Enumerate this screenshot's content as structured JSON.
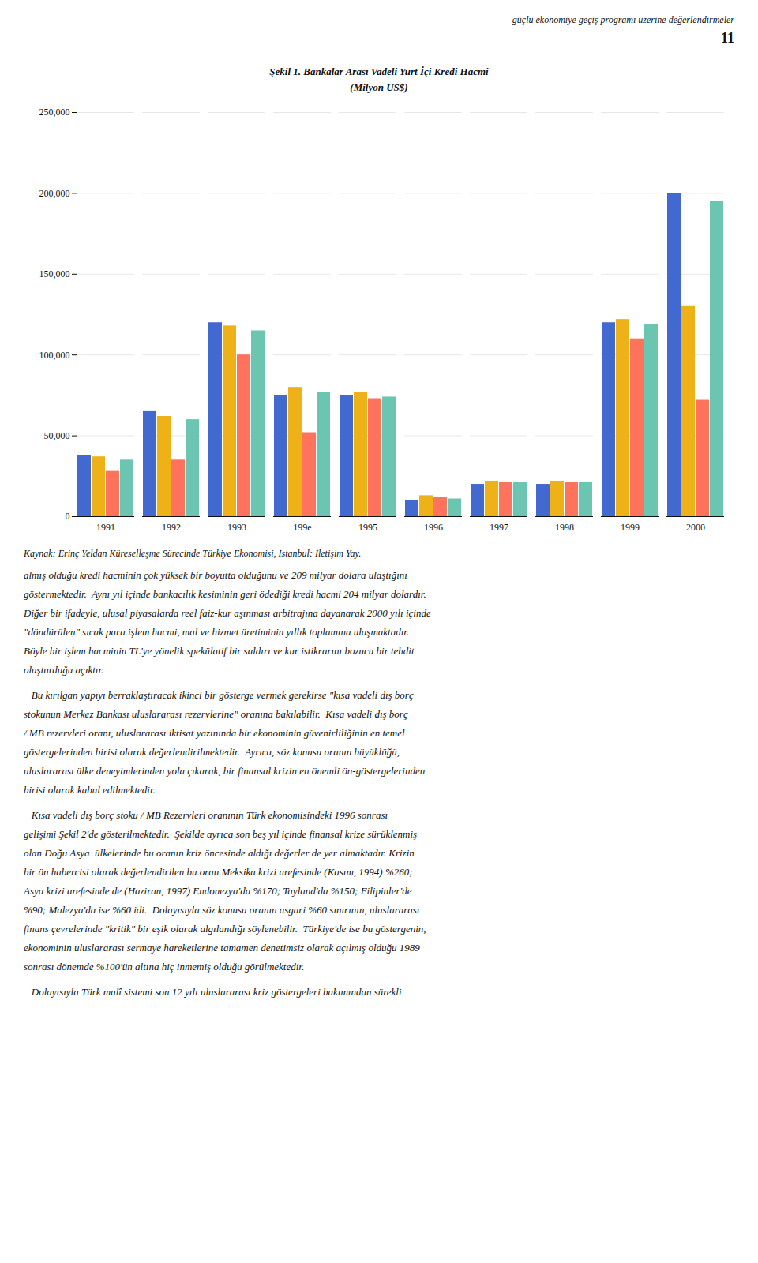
{
  "header": "güçlü ekonomiye geçiş programı üzerine değerlendirmeler",
  "page_number": "11",
  "chart_data": {
    "type": "bar",
    "title": "Şekil 1. Bankalar Arası Vadeli Yurt İçi Kredi Hacmi",
    "subtitle": "(Milyon US$)",
    "categories": [
      "1991",
      "1992",
      "1993",
      "199e",
      "1995",
      "1996",
      "1997",
      "1998",
      "1999",
      "2000"
    ],
    "series": [
      {
        "values": [
          38000,
          65000,
          120000,
          75000,
          75000,
          10000,
          20000,
          20000,
          120000,
          200000
        ]
      },
      {
        "values": [
          37000,
          62000,
          118000,
          80000,
          77000,
          13000,
          22000,
          22000,
          122000,
          130000
        ]
      },
      {
        "values": [
          28000,
          35000,
          100000,
          52000,
          73000,
          12000,
          21000,
          21000,
          110000,
          72000
        ]
      },
      {
        "values": [
          35000,
          60000,
          115000,
          77000,
          74000,
          11000,
          21000,
          21000,
          119000,
          195000
        ]
      }
    ],
    "ylim": [
      0,
      250000
    ],
    "yticks": [
      0,
      {
        "value": 50000,
        "label": "50,000"
      },
      {
        "value": 100000,
        "label": "100,000"
      },
      {
        "value": 150000,
        "label": "150,000"
      },
      {
        "value": 200000,
        "label": "200,000"
      },
      {
        "value": 250000,
        "label": "250,000"
      }
    ],
    "grid": true,
    "source": "Kaynak: Erinç Yeldan Küreselleşme Sürecinde Türkiye Ekonomisi, İstanbul: İletişim Yay."
  },
  "paragraphs": [
    [
      "almış olduğu kredi hacminin çok yüksek bir boyutta olduğunu ve 209 milyar dolara ulaştığını",
      "göstermektedir.  Aynı yıl içinde bankacılık kesiminin geri ödediği kredi hacmi 204 milyar dolardır.",
      "Diğer bir ifadeyle, ulusal piyasalarda reel faiz-kur aşınması arbitrajına dayanarak 2000 yılı içinde",
      "\"döndürülen\" sıcak para işlem hacmi, mal ve hizmet üretiminin yıllık toplamına ulaşmaktadır.",
      "Böyle bir işlem hacminin TL'ye yönelik spekülatif bir saldırı ve kur istikrarını bozucu bir tehdit",
      "oluşturduğu açıktır."
    ],
    [
      "   Bu kırılgan yapıyı berraklaştıracak ikinci bir gösterge vermek gerekirse \"kısa vadeli dış borç",
      "stokunun Merkez Bankası uluslararası rezervlerine\" oranına bakılabilir.  Kısa vadeli dış borç",
      "/ MB rezervleri oranı, uluslararası iktisat yazınında bir ekonominin güvenirliliğinin en temel",
      "göstergelerinden birisi olarak değerlendirilmektedir.  Ayrıca, söz konusu oranın büyüklüğü,",
      "uluslararası ülke deneyimlerinden yola çıkarak, bir finansal krizin en önemli ön-göstergelerinden",
      "birisi olarak kabul edilmektedir."
    ],
    [
      "   Kısa vadeli dış borç stoku / MB Rezervleri oranının Türk ekonomisindeki 1996 sonrası",
      "gelişimi Şekil 2'de gösterilmektedir.  Şekilde ayrıca son beş yıl içinde finansal krize sürüklenmiş",
      "olan Doğu Asya  ülkelerinde bu oranın kriz öncesinde aldığı değerler de yer almaktadır. Krizin",
      "bir ön habercisi olarak değerlendirilen bu oran Meksika krizi arefesinde (Kasım, 1994) %260;",
      "Asya krizi arefesinde de (Haziran, 1997) Endonezya'da %170; Tayland'da %150; Filipinler'de",
      "%90; Malezya'da ise %60 idi.  Dolayısıyla söz konusu oranın asgari %60 sınırının, uluslararası",
      "finans çevrelerinde \"kritik\" bir eşik olarak algılandığı söylenebilir.  Türkiye'de ise bu göstergenin,",
      "ekonominin uluslararası sermaye hareketlerine tamamen denetimsiz olarak açılmış olduğu 1989",
      "sonrası dönemde %100'ün altına hiç inmemiş olduğu görülmektedir."
    ],
    [
      "   Dolayısıyla Türk malî sistemi son 12 yılı uluslararası kriz göstergeleri bakımından sürekli"
    ]
  ]
}
